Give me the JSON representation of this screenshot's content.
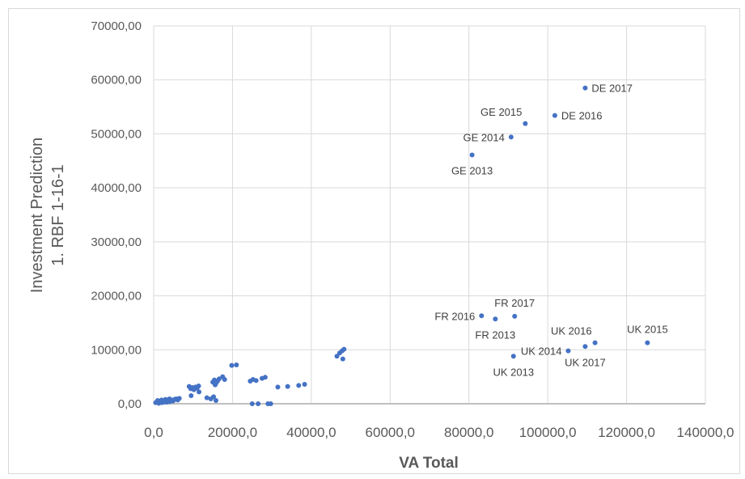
{
  "chart_data": {
    "type": "scatter",
    "xlabel": "VA Total",
    "ylabel_lines": [
      "Investment Prediction",
      "1. RBF 1-16-1"
    ],
    "xlim": [
      0,
      140000
    ],
    "ylim": [
      0,
      70000
    ],
    "x_ticks": [
      0,
      20000,
      40000,
      60000,
      80000,
      100000,
      120000,
      140000
    ],
    "y_ticks": [
      0,
      10000,
      20000,
      30000,
      40000,
      50000,
      60000,
      70000
    ],
    "x_tick_labels": [
      "0,0",
      "20000,0",
      "40000,0",
      "60000,0",
      "80000,0",
      "100000,0",
      "120000,0",
      "140000,0"
    ],
    "y_tick_labels": [
      "0,00",
      "10000,00",
      "20000,00",
      "30000,00",
      "40000,00",
      "50000,00",
      "60000,00",
      "70000,00"
    ],
    "grid": true,
    "marker_color": "#4472c4",
    "labeled_points": [
      {
        "label": "DE 2017",
        "x": 109500,
        "y": 58500,
        "pos": "right"
      },
      {
        "label": "DE 2016",
        "x": 101800,
        "y": 53400,
        "pos": "right"
      },
      {
        "label": "GE 2015",
        "x": 94300,
        "y": 51900,
        "pos": "above-left"
      },
      {
        "label": "GE 2014",
        "x": 90700,
        "y": 49400,
        "pos": "left"
      },
      {
        "label": "GE 2013",
        "x": 80800,
        "y": 46100,
        "pos": "below"
      },
      {
        "label": "FR 2017",
        "x": 91600,
        "y": 16200,
        "pos": "above"
      },
      {
        "label": "FR 2016",
        "x": 83200,
        "y": 16300,
        "pos": "left"
      },
      {
        "label": "FR 2013",
        "x": 86700,
        "y": 15700,
        "pos": "below"
      },
      {
        "label": "UK 2016",
        "x": 112000,
        "y": 11300,
        "pos": "above-left"
      },
      {
        "label": "UK 2015",
        "x": 125300,
        "y": 11300,
        "pos": "above"
      },
      {
        "label": "UK 2014",
        "x": 105200,
        "y": 9800,
        "pos": "left"
      },
      {
        "label": "UK 2013",
        "x": 91300,
        "y": 8800,
        "pos": "below"
      },
      {
        "label": "UK 2017",
        "x": 109500,
        "y": 10600,
        "pos": "below"
      }
    ],
    "points": [
      [
        500,
        200
      ],
      [
        900,
        300
      ],
      [
        1300,
        100
      ],
      [
        1700,
        400
      ],
      [
        2100,
        200
      ],
      [
        2500,
        300
      ],
      [
        2900,
        500
      ],
      [
        3300,
        300
      ],
      [
        3700,
        600
      ],
      [
        4100,
        400
      ],
      [
        4500,
        700
      ],
      [
        4900,
        500
      ],
      [
        5300,
        800
      ],
      [
        5700,
        900
      ],
      [
        6100,
        700
      ],
      [
        6500,
        1000
      ],
      [
        1000,
        600
      ],
      [
        2000,
        700
      ],
      [
        3000,
        800
      ],
      [
        4000,
        900
      ],
      [
        9000,
        3200
      ],
      [
        9400,
        2800
      ],
      [
        9800,
        3000
      ],
      [
        10200,
        2600
      ],
      [
        10600,
        3100
      ],
      [
        11000,
        2900
      ],
      [
        11400,
        3300
      ],
      [
        9500,
        1500
      ],
      [
        11500,
        2200
      ],
      [
        13500,
        1100
      ],
      [
        14500,
        900
      ],
      [
        15200,
        1300
      ],
      [
        15800,
        600
      ],
      [
        15000,
        4000
      ],
      [
        15400,
        4400
      ],
      [
        15800,
        3800
      ],
      [
        16200,
        4200
      ],
      [
        16600,
        4600
      ],
      [
        15600,
        3500
      ],
      [
        17500,
        5000
      ],
      [
        18000,
        4500
      ],
      [
        19800,
        7100
      ],
      [
        21000,
        7200
      ],
      [
        24500,
        4200
      ],
      [
        25200,
        4500
      ],
      [
        26000,
        4300
      ],
      [
        27500,
        4700
      ],
      [
        28300,
        4900
      ],
      [
        25000,
        0
      ],
      [
        26500,
        0
      ],
      [
        29000,
        0
      ],
      [
        29700,
        0
      ],
      [
        31500,
        3100
      ],
      [
        34000,
        3200
      ],
      [
        36800,
        3400
      ],
      [
        38300,
        3600
      ],
      [
        46500,
        8800
      ],
      [
        47200,
        9400
      ],
      [
        47800,
        9800
      ],
      [
        48300,
        10100
      ],
      [
        48000,
        8300
      ]
    ]
  }
}
